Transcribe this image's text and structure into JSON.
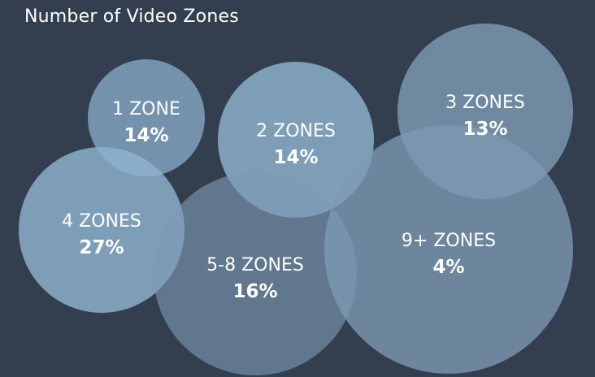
{
  "chart_data": {
    "type": "bubble",
    "title": "Number of Video Zones",
    "series": [
      {
        "label": "1 ZONE",
        "value": "14%"
      },
      {
        "label": "2 ZONES",
        "value": "14%"
      },
      {
        "label": "3 ZONES",
        "value": "13%"
      },
      {
        "label": "4 ZONES",
        "value": "27%"
      },
      {
        "label": "5-8 ZONES",
        "value": "16%"
      },
      {
        "label": "9+ ZONES",
        "value": "4%"
      }
    ]
  },
  "colors": {
    "background": "#333f4f",
    "bubble_light": "#8fb3d0",
    "bubble_dark": "#7d9ab3",
    "text": "#ffffff"
  }
}
